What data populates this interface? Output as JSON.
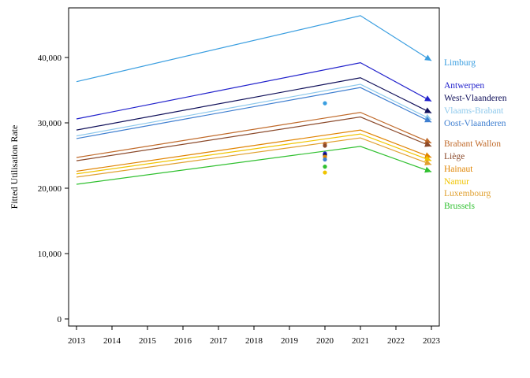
{
  "chart_data": {
    "type": "line",
    "ylabel": "Fitted Utilisation Rate",
    "xlabel": "",
    "x_ticks": [
      "2013",
      "2014",
      "2015",
      "2016",
      "2017",
      "2018",
      "2019",
      "2020",
      "2021",
      "2022",
      "2023"
    ],
    "y_ticks": [
      {
        "value": 0,
        "label": "0"
      },
      {
        "value": 10000,
        "label": "10,000"
      },
      {
        "value": 20000,
        "label": "20,000"
      },
      {
        "value": 30000,
        "label": "30,000"
      },
      {
        "value": 40000,
        "label": "40,000"
      }
    ],
    "xlim": [
      2012.8,
      2023.25
    ],
    "ylim": [
      -1200,
      47800
    ],
    "grid": false,
    "legend": "right, labels at line ends",
    "series": [
      {
        "name": "Limburg",
        "color": "#3a9ee0",
        "x": [
          2013,
          2021,
          2023
        ],
        "y": [
          36300,
          46400,
          39500
        ]
      },
      {
        "name": "Antwerpen",
        "color": "#2222cc",
        "x": [
          2013,
          2021,
          2023
        ],
        "y": [
          30600,
          39200,
          33300
        ]
      },
      {
        "name": "West-Vlaanderen",
        "color": "#10105a",
        "x": [
          2013,
          2021,
          2023
        ],
        "y": [
          28900,
          36900,
          31500
        ]
      },
      {
        "name": "Vlaams-Brabant",
        "color": "#8ec9ec",
        "x": [
          2013,
          2021,
          2023
        ],
        "y": [
          28000,
          35900,
          30500
        ]
      },
      {
        "name": "Oost-Vlaanderen",
        "color": "#3f7fd0",
        "x": [
          2013,
          2021,
          2023
        ],
        "y": [
          27600,
          35400,
          30100
        ]
      },
      {
        "name": "Brabant Wallon",
        "color": "#c06a2a",
        "x": [
          2013,
          2021,
          2023
        ],
        "y": [
          24700,
          31600,
          26900
        ]
      },
      {
        "name": "Liège",
        "color": "#8b4a2b",
        "x": [
          2013,
          2021,
          2023
        ],
        "y": [
          24200,
          30900,
          26400
        ]
      },
      {
        "name": "Hainaut",
        "color": "#e08400",
        "x": [
          2013,
          2021,
          2023
        ],
        "y": [
          22600,
          28900,
          24700
        ]
      },
      {
        "name": "Namur",
        "color": "#f0c400",
        "x": [
          2013,
          2021,
          2023
        ],
        "y": [
          22200,
          28300,
          24200
        ]
      },
      {
        "name": "Luxembourg",
        "color": "#e0a030",
        "x": [
          2013,
          2021,
          2023
        ],
        "y": [
          21700,
          27700,
          23600
        ]
      },
      {
        "name": "Brussels",
        "color": "#30c030",
        "x": [
          2013,
          2021,
          2023
        ],
        "y": [
          20600,
          26400,
          22500
        ]
      }
    ],
    "observed_2020": [
      {
        "name": "Limburg",
        "color": "#3a9ee0",
        "y": 33000
      },
      {
        "name": "Brabant Wallon",
        "color": "#c06a2a",
        "y": 26800
      },
      {
        "name": "Liège",
        "color": "#8b4a2b",
        "y": 26500
      },
      {
        "name": "Antwerpen",
        "color": "#2222cc",
        "y": 25300
      },
      {
        "name": "West-Vlaanderen",
        "color": "#10105a",
        "y": 25100
      },
      {
        "name": "Hainaut",
        "color": "#e08400",
        "y": 24800
      },
      {
        "name": "Oost-Vlaanderen",
        "color": "#3f7fd0",
        "y": 24400
      },
      {
        "name": "Brussels",
        "color": "#30c030",
        "y": 23300
      },
      {
        "name": "Namur",
        "color": "#f0c400",
        "y": 22400
      }
    ]
  }
}
